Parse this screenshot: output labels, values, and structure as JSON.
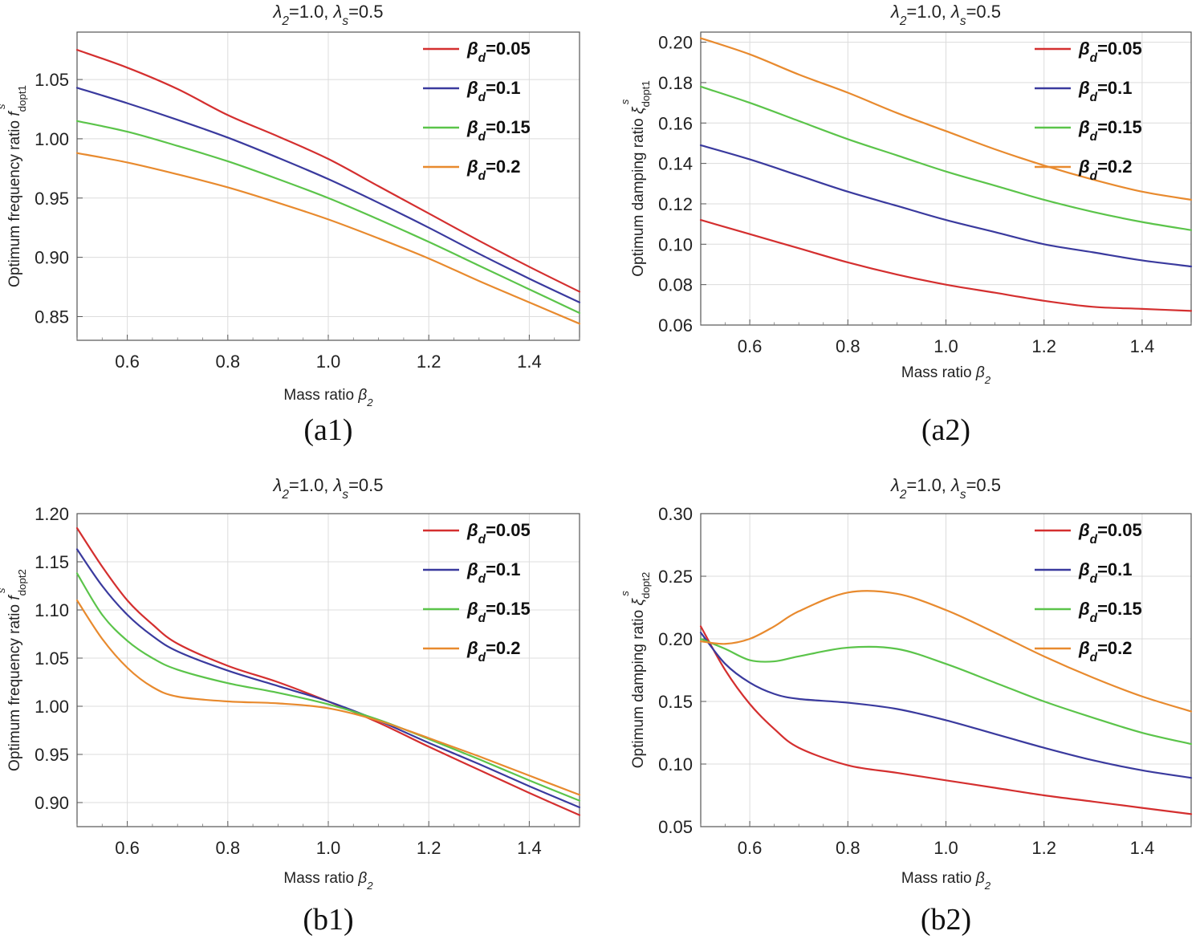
{
  "chart_data": [
    {
      "id": "a1",
      "type": "line",
      "title": "λ2=1.0,  λs=0.5",
      "xlabel": "Mass ratio β2",
      "ylabel": "Optimum frequency ratio f dopt1 s",
      "caption": "(a1)",
      "xlim": [
        0.5,
        1.5
      ],
      "ylim": [
        0.83,
        1.09
      ],
      "xticks": [
        0.6,
        0.8,
        1.0,
        1.2,
        1.4
      ],
      "xtick_labels": [
        "0.6",
        "0.8",
        "1.0",
        "1.2",
        "1.4"
      ],
      "yticks": [
        0.85,
        0.9,
        0.95,
        1.0,
        1.05
      ],
      "ytick_labels": [
        "0.85",
        "0.90",
        "0.95",
        "1.00",
        "1.05"
      ],
      "grid": true,
      "legend_position": "top-right",
      "x": [
        0.5,
        0.6,
        0.7,
        0.8,
        0.9,
        1.0,
        1.1,
        1.2,
        1.3,
        1.4,
        1.5
      ],
      "series": [
        {
          "name": "βd=0.05",
          "color": "#d42f2f",
          "values": [
            1.075,
            1.06,
            1.042,
            1.02,
            1.002,
            0.983,
            0.96,
            0.937,
            0.914,
            0.892,
            0.871
          ]
        },
        {
          "name": "βd=0.1",
          "color": "#3a3a9e",
          "values": [
            1.043,
            1.03,
            1.016,
            1.001,
            0.984,
            0.966,
            0.946,
            0.925,
            0.903,
            0.882,
            0.862
          ]
        },
        {
          "name": "βd=0.15",
          "color": "#5bc44a",
          "values": [
            1.015,
            1.006,
            0.994,
            0.981,
            0.966,
            0.95,
            0.932,
            0.913,
            0.893,
            0.873,
            0.853
          ]
        },
        {
          "name": "βd=0.2",
          "color": "#e88a2e",
          "values": [
            0.988,
            0.98,
            0.97,
            0.959,
            0.946,
            0.932,
            0.916,
            0.899,
            0.88,
            0.862,
            0.844
          ]
        }
      ]
    },
    {
      "id": "a2",
      "type": "line",
      "title": "λ2=1.0,  λs=0.5",
      "xlabel": "Mass ratio β2",
      "ylabel": "Optimum damping ratio ξ dopt1 s",
      "caption": "(a2)",
      "xlim": [
        0.5,
        1.5
      ],
      "ylim": [
        0.06,
        0.205
      ],
      "xticks": [
        0.6,
        0.8,
        1.0,
        1.2,
        1.4
      ],
      "xtick_labels": [
        "0.6",
        "0.8",
        "1.0",
        "1.2",
        "1.4"
      ],
      "yticks": [
        0.06,
        0.08,
        0.1,
        0.12,
        0.14,
        0.16,
        0.18,
        0.2
      ],
      "ytick_labels": [
        "0.06",
        "0.08",
        "0.10",
        "0.12",
        "0.14",
        "0.16",
        "0.18",
        "0.20"
      ],
      "grid": true,
      "legend_position": "top-right",
      "x": [
        0.5,
        0.6,
        0.7,
        0.8,
        0.9,
        1.0,
        1.1,
        1.2,
        1.3,
        1.4,
        1.5
      ],
      "series": [
        {
          "name": "βd=0.05",
          "color": "#d42f2f",
          "values": [
            0.112,
            0.105,
            0.098,
            0.091,
            0.085,
            0.08,
            0.076,
            0.072,
            0.069,
            0.068,
            0.067
          ]
        },
        {
          "name": "βd=0.1",
          "color": "#3a3a9e",
          "values": [
            0.149,
            0.142,
            0.134,
            0.126,
            0.119,
            0.112,
            0.106,
            0.1,
            0.096,
            0.092,
            0.089
          ]
        },
        {
          "name": "βd=0.15",
          "color": "#5bc44a",
          "values": [
            0.178,
            0.17,
            0.161,
            0.152,
            0.144,
            0.136,
            0.129,
            0.122,
            0.116,
            0.111,
            0.107
          ]
        },
        {
          "name": "βd=0.2",
          "color": "#e88a2e",
          "values": [
            0.202,
            0.194,
            0.184,
            0.175,
            0.165,
            0.156,
            0.147,
            0.139,
            0.132,
            0.126,
            0.122
          ]
        }
      ]
    },
    {
      "id": "b1",
      "type": "line",
      "title": "λ2=1.0,  λs=0.5",
      "xlabel": "Mass ratio β2",
      "ylabel": "Optimum frequency ratio f dopt2 s",
      "caption": "(b1)",
      "xlim": [
        0.5,
        1.5
      ],
      "ylim": [
        0.875,
        1.2
      ],
      "xticks": [
        0.6,
        0.8,
        1.0,
        1.2,
        1.4
      ],
      "xtick_labels": [
        "0.6",
        "0.8",
        "1.0",
        "1.2",
        "1.4"
      ],
      "yticks": [
        0.9,
        0.95,
        1.0,
        1.05,
        1.1,
        1.15,
        1.2
      ],
      "ytick_labels": [
        "0.90",
        "0.95",
        "1.00",
        "1.05",
        "1.10",
        "1.15",
        "1.20"
      ],
      "grid": true,
      "legend_position": "top-right",
      "x": [
        0.5,
        0.55,
        0.6,
        0.65,
        0.7,
        0.8,
        0.9,
        1.0,
        1.1,
        1.2,
        1.3,
        1.4,
        1.5
      ],
      "series": [
        {
          "name": "βd=0.05",
          "color": "#d42f2f",
          "values": [
            1.185,
            1.145,
            1.11,
            1.085,
            1.065,
            1.042,
            1.025,
            1.005,
            0.983,
            0.958,
            0.934,
            0.91,
            0.887
          ]
        },
        {
          "name": "βd=0.1",
          "color": "#3a3a9e",
          "values": [
            1.163,
            1.125,
            1.095,
            1.073,
            1.057,
            1.037,
            1.021,
            1.005,
            0.985,
            0.962,
            0.94,
            0.917,
            0.895
          ]
        },
        {
          "name": "βd=0.15",
          "color": "#5bc44a",
          "values": [
            1.138,
            1.095,
            1.068,
            1.05,
            1.038,
            1.024,
            1.014,
            1.002,
            0.986,
            0.966,
            0.945,
            0.923,
            0.902
          ]
        },
        {
          "name": "βd=0.2",
          "color": "#e88a2e",
          "values": [
            1.11,
            1.07,
            1.04,
            1.02,
            1.01,
            1.005,
            1.003,
            0.998,
            0.985,
            0.967,
            0.948,
            0.928,
            0.908
          ]
        }
      ]
    },
    {
      "id": "b2",
      "type": "line",
      "title": "λ2=1.0,  λs=0.5",
      "xlabel": "Mass ratio β2",
      "ylabel": "Optimum damping ratio ξ dopt2 s",
      "caption": "(b2)",
      "xlim": [
        0.5,
        1.5
      ],
      "ylim": [
        0.05,
        0.3
      ],
      "xticks": [
        0.6,
        0.8,
        1.0,
        1.2,
        1.4
      ],
      "xtick_labels": [
        "0.6",
        "0.8",
        "1.0",
        "1.2",
        "1.4"
      ],
      "yticks": [
        0.05,
        0.1,
        0.15,
        0.2,
        0.25,
        0.3
      ],
      "ytick_labels": [
        "0.05",
        "0.10",
        "0.15",
        "0.20",
        "0.25",
        "0.30"
      ],
      "grid": true,
      "legend_position": "top-right",
      "x": [
        0.5,
        0.55,
        0.6,
        0.65,
        0.7,
        0.8,
        0.9,
        1.0,
        1.1,
        1.2,
        1.3,
        1.4,
        1.5
      ],
      "series": [
        {
          "name": "βd=0.05",
          "color": "#d42f2f",
          "values": [
            0.21,
            0.175,
            0.148,
            0.128,
            0.113,
            0.099,
            0.093,
            0.087,
            0.081,
            0.075,
            0.07,
            0.065,
            0.06
          ]
        },
        {
          "name": "βd=0.1",
          "color": "#3a3a9e",
          "values": [
            0.205,
            0.18,
            0.165,
            0.156,
            0.152,
            0.149,
            0.144,
            0.135,
            0.124,
            0.113,
            0.103,
            0.095,
            0.089
          ]
        },
        {
          "name": "βd=0.15",
          "color": "#5bc44a",
          "values": [
            0.2,
            0.192,
            0.183,
            0.182,
            0.186,
            0.193,
            0.192,
            0.18,
            0.165,
            0.15,
            0.137,
            0.125,
            0.116
          ]
        },
        {
          "name": "βd=0.2",
          "color": "#e88a2e",
          "values": [
            0.198,
            0.196,
            0.2,
            0.21,
            0.222,
            0.237,
            0.236,
            0.223,
            0.205,
            0.186,
            0.169,
            0.154,
            0.142
          ]
        }
      ]
    }
  ]
}
